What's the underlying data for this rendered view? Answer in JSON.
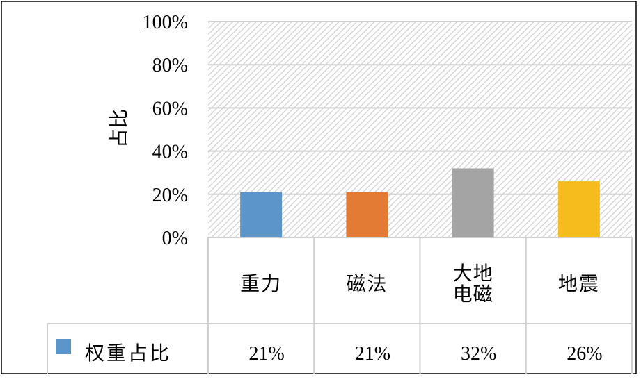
{
  "chart_data": {
    "type": "bar",
    "ylabel": "占比",
    "ylim": [
      0,
      100
    ],
    "yticks": [
      {
        "value": 0,
        "label": "0%"
      },
      {
        "value": 20,
        "label": "20%"
      },
      {
        "value": 40,
        "label": "40%"
      },
      {
        "value": 60,
        "label": "60%"
      },
      {
        "value": 80,
        "label": "80%"
      },
      {
        "value": 100,
        "label": "100%"
      }
    ],
    "categories": [
      {
        "line1": "重力",
        "line2": ""
      },
      {
        "line1": "磁法",
        "line2": ""
      },
      {
        "line1": "大地",
        "line2": "电磁"
      },
      {
        "line1": "地震",
        "line2": ""
      }
    ],
    "series": [
      {
        "name": "权重占比",
        "values": [
          21,
          21,
          32,
          26
        ],
        "labels": [
          "21%",
          "21%",
          "32%",
          "26%"
        ],
        "colors": [
          "#5b95c9",
          "#e47b35",
          "#a4a4a4",
          "#f6bc1e"
        ],
        "legend_color": "#5b95c9"
      }
    ],
    "plot_background": "hatched light gray",
    "grid": true,
    "legend": "data-table"
  }
}
